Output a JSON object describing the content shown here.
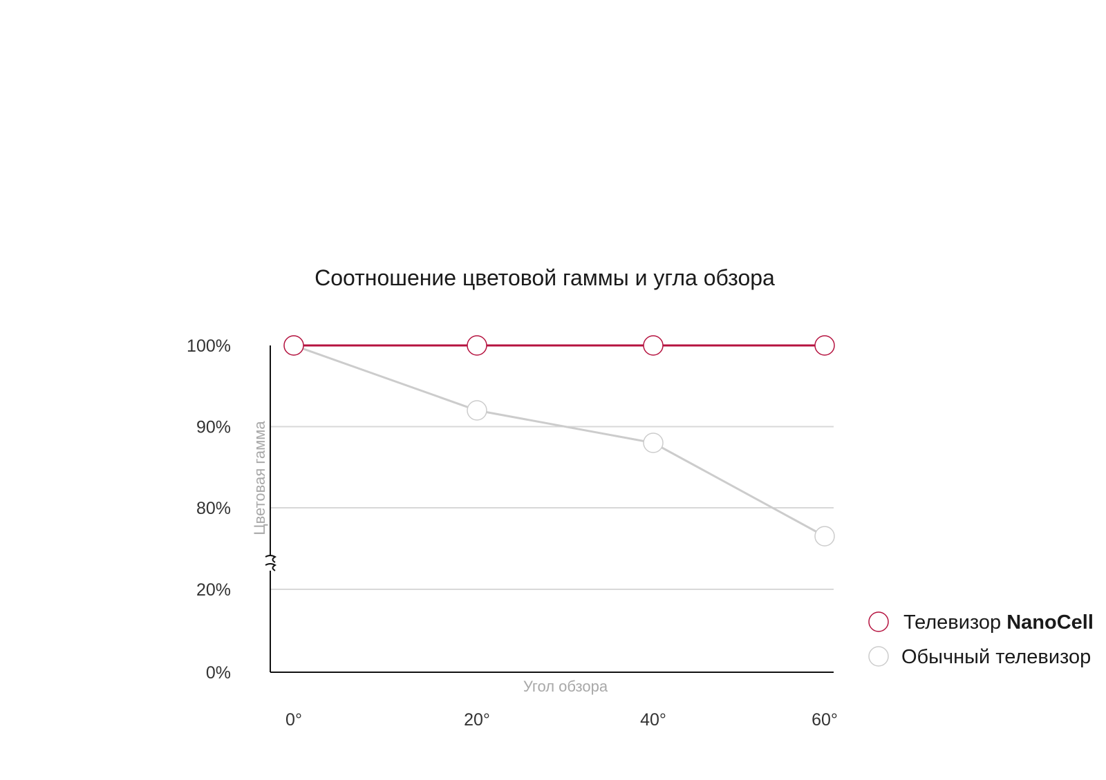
{
  "chart_data": {
    "type": "line",
    "title": "Соотношение цветовой гаммы и угла обзора",
    "xlabel": "Угол обзора",
    "ylabel": "Цветовая гамма",
    "categories": [
      "0°",
      "20°",
      "40°",
      "60°"
    ],
    "y_ticks": [
      "100%",
      "90%",
      "80%",
      "20%",
      "0%"
    ],
    "y_axis_break": true,
    "series": [
      {
        "name_prefix": "Телевизор",
        "name_bold": "NanoCell",
        "color": "#b5123f",
        "values": [
          100,
          100,
          100,
          100
        ]
      },
      {
        "name_prefix": "Обычный телевизор",
        "name_bold": "",
        "color": "#cccccc",
        "values": [
          100,
          92,
          88,
          76.5
        ]
      }
    ],
    "legend_position": "right",
    "grid": true
  },
  "colors": {
    "accent": "#b5123f",
    "muted": "#cccccc",
    "axis": "#111111"
  }
}
